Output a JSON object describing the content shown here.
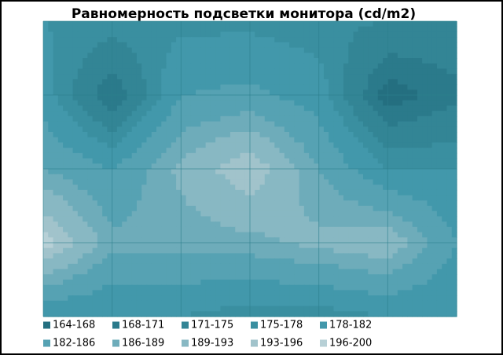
{
  "chart_data": {
    "type": "contour",
    "title": "Равномерность подсветки монитора (cd/m2)",
    "z": [
      [
        178,
        177,
        177,
        177,
        176,
        175,
        174
      ],
      [
        180,
        168,
        182,
        183,
        180,
        166,
        170
      ],
      [
        186,
        182,
        190,
        196,
        186,
        178,
        178
      ],
      [
        198,
        187,
        187,
        188,
        190,
        192,
        182
      ],
      [
        178,
        178,
        178,
        176,
        176,
        178,
        178
      ]
    ],
    "bands": [
      {
        "label": "164-168",
        "min": 164,
        "max": 168,
        "color": "#246f80"
      },
      {
        "label": "168-171",
        "min": 168,
        "max": 171,
        "color": "#2b7a8b"
      },
      {
        "label": "171-175",
        "min": 171,
        "max": 175,
        "color": "#338595"
      },
      {
        "label": "175-178",
        "min": 175,
        "max": 178,
        "color": "#3a8fa0"
      },
      {
        "label": "178-182",
        "min": 178,
        "max": 182,
        "color": "#4298ab"
      },
      {
        "label": "182-186",
        "min": 182,
        "max": 186,
        "color": "#56a2b3"
      },
      {
        "label": "186-189",
        "min": 186,
        "max": 189,
        "color": "#6eacba"
      },
      {
        "label": "189-193",
        "min": 189,
        "max": 193,
        "color": "#88b8c3"
      },
      {
        "label": "193-196",
        "min": 193,
        "max": 196,
        "color": "#a1c3cb"
      },
      {
        "label": "196-200",
        "min": 196,
        "max": 200,
        "color": "#b7d0d6"
      }
    ]
  }
}
